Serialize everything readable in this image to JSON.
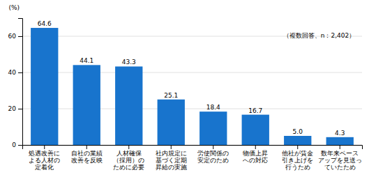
{
  "chart_data": {
    "type": "bar",
    "categories": [
      "処遇改善に\nよる人材の\n定着化",
      "自社の業績\n改善を反映",
      "人材確保\n（採用）の\nために必要",
      "社内規定に\n基づく定期\n昇給の実施",
      "労使関係の\n安定のため",
      "物価上昇\nへの対応",
      "他社が賃金\n引き上げを\n行うため",
      "数年来ベース\nアップを見送っ\nていたため"
    ],
    "values": [
      64.6,
      44.1,
      43.3,
      25.1,
      18.4,
      16.7,
      5.0,
      4.3
    ],
    "value_labels": [
      "64.6",
      "44.1",
      "43.3",
      "25.1",
      "18.4",
      "16.7",
      "5.0",
      "4.3"
    ],
    "color": "#1874CD",
    "ylabel": "(%)",
    "annotation": "（複数回答、n：2,402）",
    "ylim": [
      0,
      70
    ],
    "yticks": [
      0,
      20,
      40,
      60
    ],
    "grid": true,
    "data_labels": true
  }
}
